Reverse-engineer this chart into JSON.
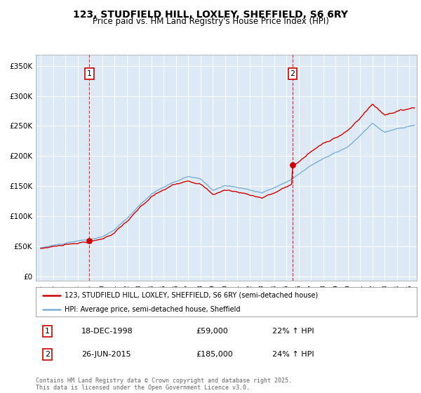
{
  "title": "123, STUDFIELD HILL, LOXLEY, SHEFFIELD, S6 6RY",
  "subtitle": "Price paid vs. HM Land Registry's House Price Index (HPI)",
  "legend_label_red": "123, STUDFIELD HILL, LOXLEY, SHEFFIELD, S6 6RY (semi-detached house)",
  "legend_label_blue": "HPI: Average price, semi-detached house, Sheffield",
  "sale1_date": "18-DEC-1998",
  "sale1_price": "£59,000",
  "sale1_hpi": "22% ↑ HPI",
  "sale1_year": 1998.96,
  "sale1_value": 59000,
  "sale2_date": "26-JUN-2015",
  "sale2_price": "£185,000",
  "sale2_hpi": "24% ↑ HPI",
  "sale2_year": 2015.49,
  "sale2_value": 185000,
  "ylabel_ticks": [
    0,
    50000,
    100000,
    150000,
    200000,
    250000,
    300000,
    350000
  ],
  "ylabel_labels": [
    "£0",
    "£50K",
    "£100K",
    "£150K",
    "£200K",
    "£250K",
    "£300K",
    "£350K"
  ],
  "xmin": 1994.6,
  "xmax": 2025.6,
  "ymin": -8000,
  "ymax": 368000,
  "red_color": "#cc0000",
  "blue_color": "#7aafd4",
  "plot_bg": "#ddeaf5",
  "vline_color": "#cc0000",
  "grid_color": "#ffffff",
  "footer_text": "Contains HM Land Registry data © Crown copyright and database right 2025.\nThis data is licensed under the Open Government Licence v3.0.",
  "title_fontsize": 10,
  "subtitle_fontsize": 8.5
}
